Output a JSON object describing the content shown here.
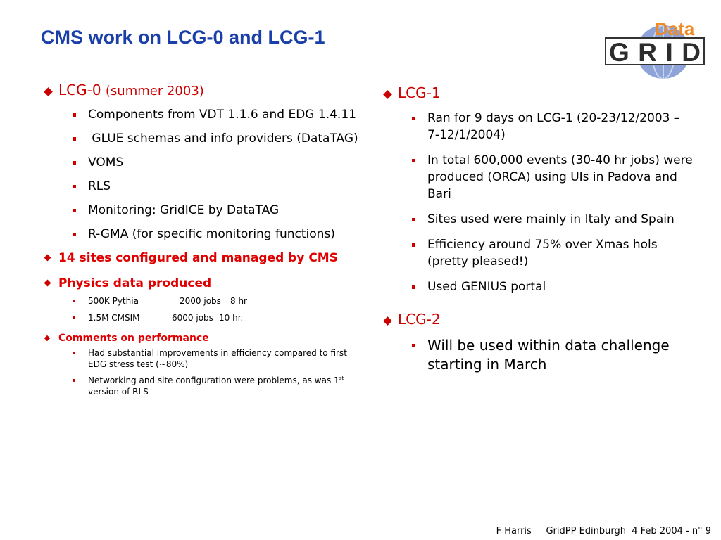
{
  "title": "CMS work on LCG-0 and LCG-1",
  "logo": {
    "word_top": "Data",
    "word_bottom": "GRID"
  },
  "left": {
    "lcg0": {
      "label": "LCG-0",
      "note": "(summer 2003)"
    },
    "lcg0_items": [
      "Components from VDT 1.1.6 and EDG 1.4.11",
      " GLUE schemas and info providers (DataTAG)",
      "VOMS",
      "RLS",
      "Monitoring: GridICE by DataTAG",
      "R-GMA (for specific monitoring functions)"
    ],
    "sites": "14 sites configured and managed by CMS",
    "physics": {
      "label": "Physics data produced",
      "items": [
        {
          "name": "500K Pythia",
          "jobs": "2000 jobs",
          "time": "8 hr"
        },
        {
          "name": "1.5M CMSIM",
          "jobs": "6000 jobs",
          "time": "10 hr."
        }
      ]
    },
    "performance": {
      "label": "Comments on performance",
      "item1": "Had substantial improvements in efficiency compared to first EDG stress test (~80%)",
      "item2_prefix": "Networking and site configuration were problems, as was 1",
      "item2_sup": "st",
      "item2_suffix": " version of RLS"
    }
  },
  "right": {
    "lcg1": {
      "label": "LCG-1",
      "items": [
        "Ran for 9 days on LCG-1 (20-23/12/2003 – 7-12/1/2004)",
        "In total 600,000 events (30-40 hr jobs) were produced (ORCA) using UIs in Padova and Bari",
        "Sites used were mainly in Italy and Spain",
        "Efficiency around 75% over Xmas hols (pretty pleased!)",
        "Used GENIUS portal"
      ]
    },
    "lcg2": {
      "label": "LCG-2",
      "items": [
        "Will be used within data challenge starting in March"
      ]
    }
  },
  "footer": {
    "author": "F Harris",
    "event": "GridPP Edinburgh",
    "date": "4 Feb 2004 - n° 9"
  },
  "colors": {
    "title": "#1a3fa8",
    "accent": "#e00000",
    "bullet": "#cc0000"
  }
}
